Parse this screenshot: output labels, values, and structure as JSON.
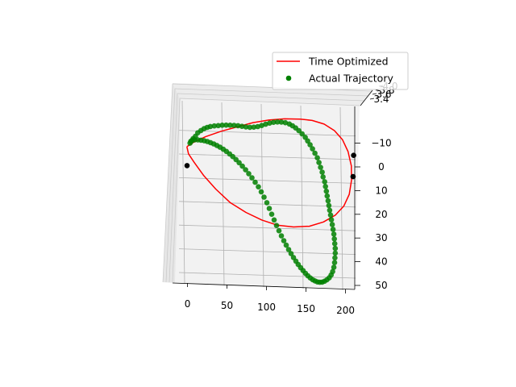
{
  "chart_data": {
    "type": "line",
    "title": "",
    "projection": "3d",
    "xlabel": "",
    "ylabel": "",
    "zlabel": "",
    "grid": true,
    "legend_location": "upper right",
    "xlim": [
      -15,
      210
    ],
    "ylim": [
      -18,
      55
    ],
    "x_ticks": [
      "0",
      "50",
      "100",
      "150",
      "200"
    ],
    "y_ticks": [
      "−10",
      "0",
      "10",
      "20",
      "30",
      "40",
      "50"
    ],
    "z_ticks": [
      "3.4",
      "3.6",
      "3.8",
      "4.0"
    ],
    "series": [
      {
        "name": "Time Optimized",
        "kind": "line",
        "color": "#ff0000",
        "points": [
          [
            1,
            -6.5
          ],
          [
            10,
            -8.5
          ],
          [
            25,
            -11
          ],
          [
            45,
            -13.5
          ],
          [
            65,
            -15.5
          ],
          [
            85,
            -17.5
          ],
          [
            105,
            -18.8
          ],
          [
            125,
            -19.5
          ],
          [
            145,
            -19.6
          ],
          [
            160,
            -19.2
          ],
          [
            175,
            -17.8
          ],
          [
            188,
            -15.2
          ],
          [
            198,
            -11.5
          ],
          [
            205,
            -6.5
          ],
          [
            209,
            -0.5
          ],
          [
            209,
            5.5
          ],
          [
            206,
            11.5
          ],
          [
            199,
            16.5
          ],
          [
            188,
            20.5
          ],
          [
            173,
            23.5
          ],
          [
            155,
            25.5
          ],
          [
            135,
            26
          ],
          [
            115,
            25.5
          ],
          [
            95,
            23.5
          ],
          [
            75,
            20.5
          ],
          [
            55,
            16.5
          ],
          [
            37,
            11
          ],
          [
            22,
            5.5
          ],
          [
            10,
            0
          ],
          [
            3,
            -3.5
          ],
          [
            1,
            -6.5
          ]
        ]
      },
      {
        "name": "Actual Trajectory",
        "kind": "scatter",
        "color": "#008000",
        "points": [
          [
            7,
            -9
          ],
          [
            9,
            -10
          ],
          [
            12,
            -11
          ],
          [
            15,
            -12.5
          ],
          [
            19,
            -13.5
          ],
          [
            23,
            -14.3
          ],
          [
            27,
            -14.9
          ],
          [
            31,
            -15.3
          ],
          [
            36,
            -15.6
          ],
          [
            41,
            -15.8
          ],
          [
            46,
            -16
          ],
          [
            51,
            -16.1
          ],
          [
            56,
            -16.1
          ],
          [
            61,
            -16.1
          ],
          [
            66,
            -16
          ],
          [
            71,
            -15.8
          ],
          [
            76,
            -15.6
          ],
          [
            81,
            -15.5
          ],
          [
            86,
            -15.6
          ],
          [
            91,
            -15.9
          ],
          [
            96,
            -16.4
          ],
          [
            101,
            -17
          ],
          [
            106,
            -17.5
          ],
          [
            111,
            -17.9
          ],
          [
            116,
            -18.1
          ],
          [
            121,
            -18.1
          ],
          [
            126,
            -17.9
          ],
          [
            131,
            -17.4
          ],
          [
            135,
            -16.7
          ],
          [
            139,
            -15.8
          ],
          [
            143,
            -14.7
          ],
          [
            147,
            -13.4
          ],
          [
            151,
            -12
          ],
          [
            154,
            -10.5
          ],
          [
            157,
            -8.9
          ],
          [
            160,
            -7.2
          ],
          [
            163,
            -5.4
          ],
          [
            166,
            -3.5
          ],
          [
            168,
            -1.5
          ],
          [
            170,
            0.5
          ],
          [
            172,
            2.5
          ],
          [
            173,
            4.5
          ],
          [
            175,
            6.5
          ],
          [
            176,
            8.5
          ],
          [
            177,
            10.5
          ],
          [
            178,
            12.5
          ],
          [
            179,
            14.5
          ],
          [
            180,
            16.5
          ],
          [
            181,
            18.5
          ],
          [
            182,
            20.5
          ],
          [
            183,
            22.5
          ],
          [
            184,
            24.5
          ],
          [
            185,
            26.5
          ],
          [
            186,
            28.5
          ],
          [
            186.5,
            30.5
          ],
          [
            187,
            32.5
          ],
          [
            187.5,
            34.5
          ],
          [
            187.5,
            36.5
          ],
          [
            187,
            38.5
          ],
          [
            186.5,
            40.5
          ],
          [
            185.5,
            42.5
          ],
          [
            184,
            44.3
          ],
          [
            182,
            45.8
          ],
          [
            179.5,
            47
          ],
          [
            176.5,
            47.9
          ],
          [
            173.5,
            48.5
          ],
          [
            170.5,
            48.9
          ],
          [
            167.5,
            49
          ],
          [
            164.5,
            48.9
          ],
          [
            161.5,
            48.5
          ],
          [
            158.5,
            48
          ],
          [
            155.5,
            47.3
          ],
          [
            152.5,
            46.4
          ],
          [
            149.5,
            45.4
          ],
          [
            146.5,
            44.3
          ],
          [
            143.5,
            43.1
          ],
          [
            140.5,
            41.8
          ],
          [
            137.5,
            40.4
          ],
          [
            134.5,
            38.9
          ],
          [
            131.5,
            37.3
          ],
          [
            128.5,
            35.6
          ],
          [
            125.5,
            33.8
          ],
          [
            122.5,
            31.9
          ],
          [
            119.5,
            29.9
          ],
          [
            116.5,
            27.8
          ],
          [
            113.5,
            25.6
          ],
          [
            110.5,
            23.3
          ],
          [
            107.5,
            20.9
          ],
          [
            104.5,
            18.5
          ],
          [
            101.5,
            16.1
          ],
          [
            98,
            13.8
          ],
          [
            94.5,
            11.6
          ],
          [
            91,
            9.5
          ],
          [
            87,
            7.6
          ],
          [
            83,
            5.8
          ],
          [
            79,
            4.1
          ],
          [
            75,
            2.5
          ],
          [
            71,
            1
          ],
          [
            67,
            -0.4
          ],
          [
            63,
            -1.7
          ],
          [
            59,
            -2.9
          ],
          [
            55,
            -4
          ],
          [
            51,
            -5
          ],
          [
            47,
            -5.9
          ],
          [
            43,
            -6.7
          ],
          [
            39,
            -7.4
          ],
          [
            35,
            -8
          ],
          [
            31,
            -8.5
          ],
          [
            27,
            -8.9
          ],
          [
            23,
            -9.2
          ],
          [
            19,
            -9.4
          ],
          [
            15,
            -9.5
          ],
          [
            11,
            -9.5
          ],
          [
            8,
            -9.3
          ],
          [
            6,
            -8.8
          ],
          [
            5,
            -8
          ]
        ]
      },
      {
        "name": "",
        "kind": "scatter",
        "color": "#000000",
        "points": [
          [
            1,
            1.5
          ],
          [
            211,
            4
          ],
          [
            212,
            -5
          ]
        ]
      }
    ]
  },
  "legend": {
    "items": [
      {
        "label": "Time Optimized",
        "color": "#ff0000",
        "marker": "line"
      },
      {
        "label": "Actual Trajectory",
        "color": "#008000",
        "marker": "dot"
      }
    ]
  }
}
